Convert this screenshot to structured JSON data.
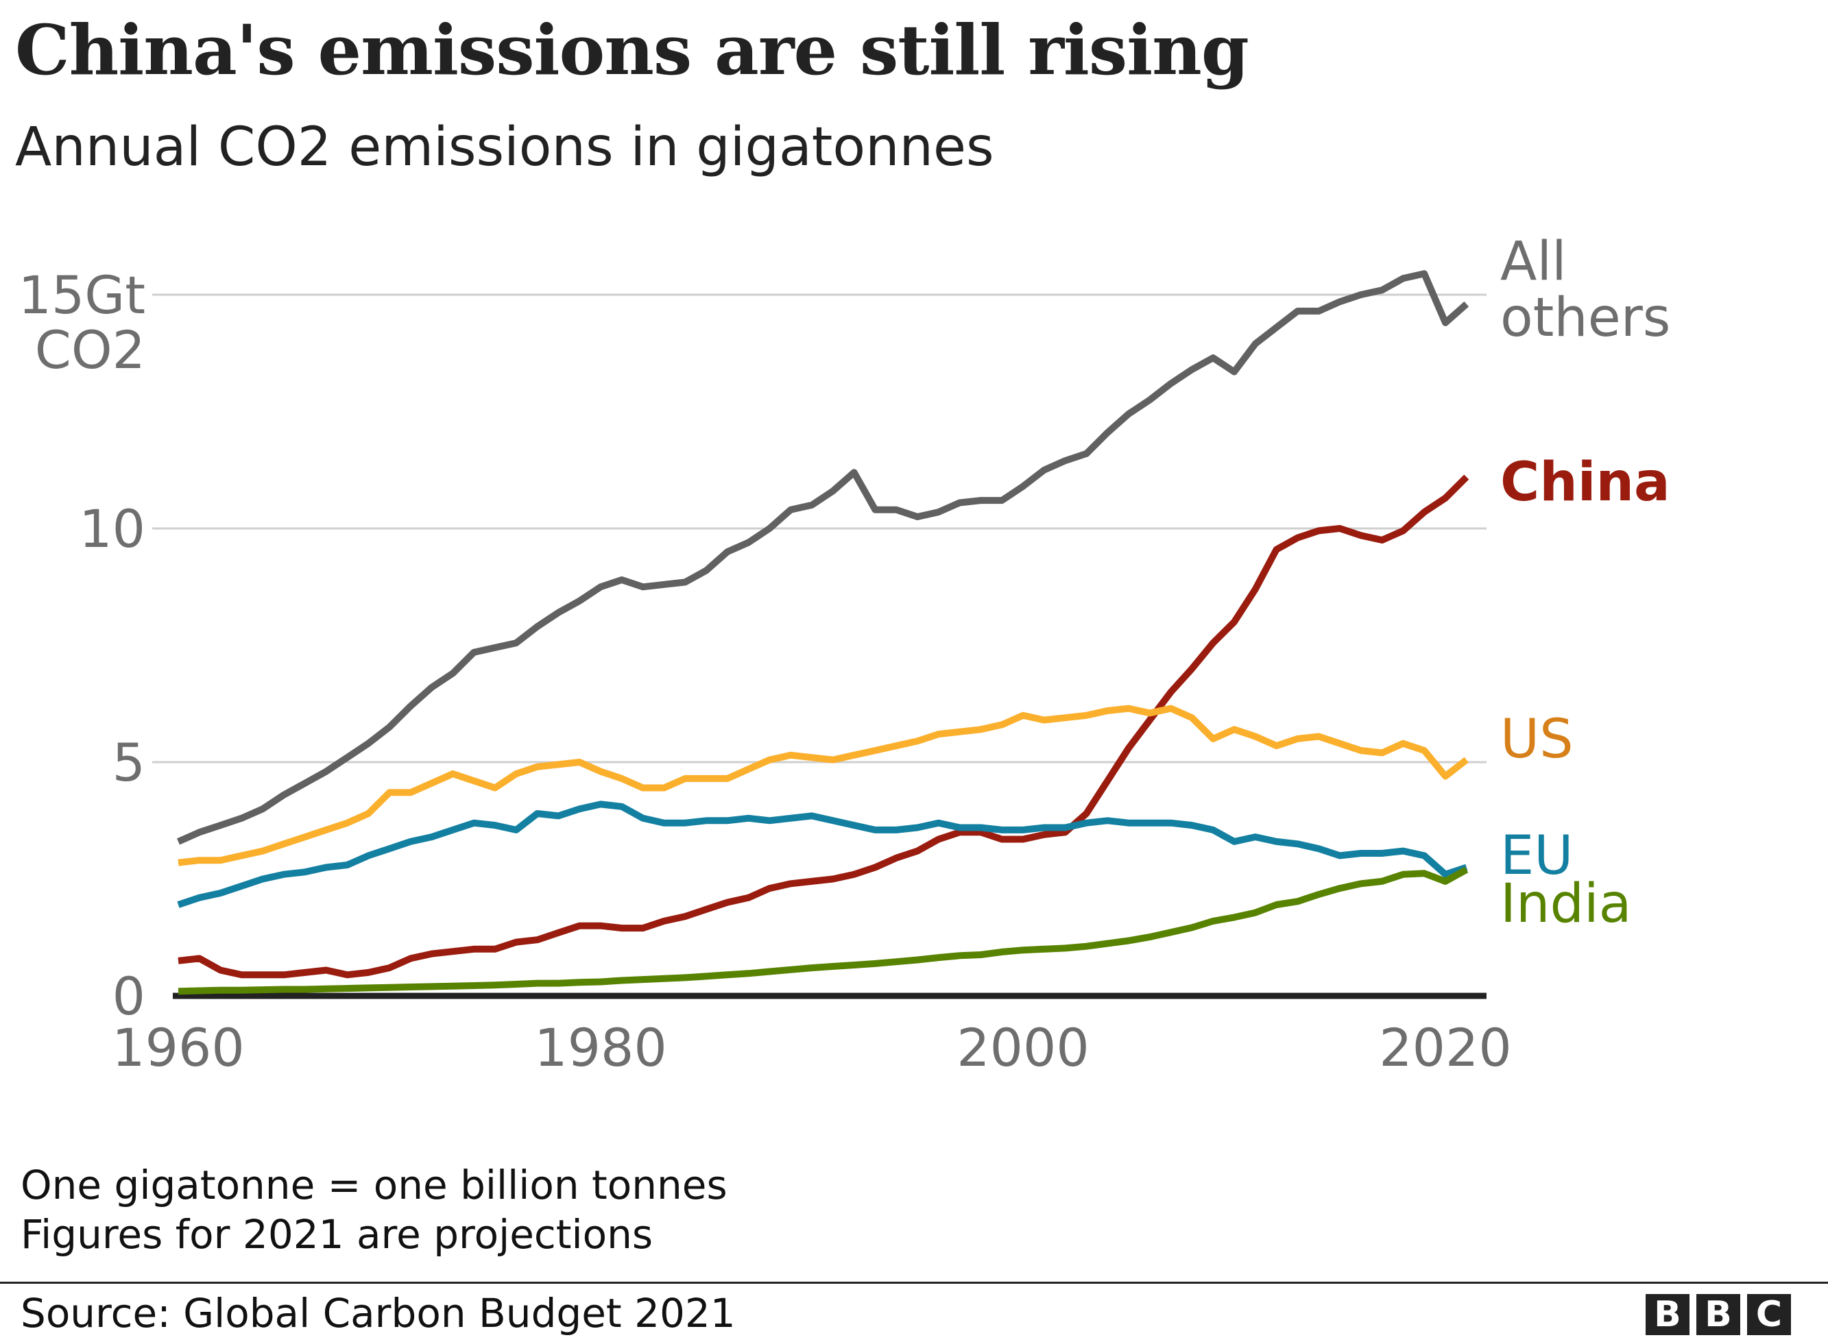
{
  "title": "China's emissions are still rising",
  "subtitle": "Annual CO2 emissions in gigatonnes",
  "notes": [
    "One gigatonne = one billion tonnes",
    "Figures for 2021 are projections"
  ],
  "source": "Source: Global Carbon Budget 2021",
  "logo": [
    "B",
    "B",
    "C"
  ],
  "chart_data": {
    "type": "line",
    "title": "China's emissions are still rising",
    "subtitle": "Annual CO2 emissions in gigatonnes",
    "ylabel_top": [
      "15Gt",
      "CO2"
    ],
    "xlim": [
      1960,
      2021
    ],
    "ylim": [
      0,
      15
    ],
    "x_ticks": [
      1960,
      1980,
      2000,
      2020
    ],
    "x_tick_labels": [
      "1960",
      "1980",
      "2000",
      "2020"
    ],
    "y_ticks": [
      0,
      5,
      10,
      15
    ],
    "y_tick_labels": [
      "0",
      "5",
      "10",
      ""
    ],
    "grid": "horizontal",
    "legend": "inline labels at line ends (right)",
    "x_start": 1960,
    "series": [
      {
        "name": "All others",
        "label_lines": [
          "All",
          "others"
        ],
        "color": "#616161",
        "label_color": "#6e6e6e",
        "values": [
          3.3,
          3.5,
          3.65,
          3.8,
          4.0,
          4.3,
          4.55,
          4.8,
          5.1,
          5.4,
          5.75,
          6.2,
          6.6,
          6.9,
          7.35,
          7.45,
          7.55,
          7.9,
          8.2,
          8.45,
          8.75,
          8.9,
          8.75,
          8.8,
          8.85,
          9.1,
          9.5,
          9.7,
          10.0,
          10.4,
          10.5,
          10.8,
          11.2,
          10.4,
          10.4,
          10.25,
          10.35,
          10.55,
          10.6,
          10.6,
          10.9,
          11.25,
          11.45,
          11.6,
          12.05,
          12.45,
          12.75,
          13.1,
          13.4,
          13.65,
          13.35,
          13.95,
          14.3,
          14.65,
          14.65,
          14.85,
          15.0,
          15.1,
          15.35,
          15.45,
          14.4,
          14.8
        ]
      },
      {
        "name": "China",
        "label_lines": [
          "China"
        ],
        "color": "#9a1c0f",
        "label_color": "#9a1c0f",
        "values": [
          0.75,
          0.8,
          0.55,
          0.45,
          0.45,
          0.45,
          0.5,
          0.55,
          0.45,
          0.5,
          0.6,
          0.8,
          0.9,
          0.95,
          1.0,
          1.0,
          1.15,
          1.2,
          1.35,
          1.5,
          1.5,
          1.45,
          1.45,
          1.6,
          1.7,
          1.85,
          2.0,
          2.1,
          2.3,
          2.4,
          2.45,
          2.5,
          2.6,
          2.75,
          2.95,
          3.1,
          3.35,
          3.5,
          3.5,
          3.35,
          3.35,
          3.45,
          3.5,
          3.9,
          4.6,
          5.3,
          5.9,
          6.5,
          7.0,
          7.55,
          8.0,
          8.7,
          9.55,
          9.8,
          9.95,
          10.0,
          9.85,
          9.75,
          9.95,
          10.35,
          10.65,
          11.1
        ]
      },
      {
        "name": "US",
        "label_lines": [
          "US"
        ],
        "color": "#fbb02d",
        "label_color": "#d7801a",
        "values": [
          2.85,
          2.9,
          2.9,
          3.0,
          3.1,
          3.25,
          3.4,
          3.55,
          3.7,
          3.9,
          4.35,
          4.35,
          4.55,
          4.75,
          4.6,
          4.45,
          4.75,
          4.9,
          4.95,
          5.0,
          4.8,
          4.65,
          4.45,
          4.45,
          4.65,
          4.65,
          4.65,
          4.85,
          5.05,
          5.15,
          5.1,
          5.05,
          5.15,
          5.25,
          5.35,
          5.45,
          5.6,
          5.65,
          5.7,
          5.8,
          6.0,
          5.9,
          5.95,
          6.0,
          6.1,
          6.15,
          6.05,
          6.15,
          5.95,
          5.5,
          5.7,
          5.55,
          5.35,
          5.5,
          5.55,
          5.4,
          5.25,
          5.2,
          5.4,
          5.25,
          4.7,
          5.05
        ]
      },
      {
        "name": "EU",
        "label_lines": [
          "EU"
        ],
        "color": "#1380a1",
        "label_color": "#1380a1",
        "values": [
          1.95,
          2.1,
          2.2,
          2.35,
          2.5,
          2.6,
          2.65,
          2.75,
          2.8,
          3.0,
          3.15,
          3.3,
          3.4,
          3.55,
          3.7,
          3.65,
          3.55,
          3.9,
          3.85,
          4.0,
          4.1,
          4.05,
          3.8,
          3.7,
          3.7,
          3.75,
          3.75,
          3.8,
          3.75,
          3.8,
          3.85,
          3.75,
          3.65,
          3.55,
          3.55,
          3.6,
          3.7,
          3.6,
          3.6,
          3.55,
          3.55,
          3.6,
          3.6,
          3.7,
          3.75,
          3.7,
          3.7,
          3.7,
          3.65,
          3.55,
          3.3,
          3.4,
          3.3,
          3.25,
          3.15,
          3.0,
          3.05,
          3.05,
          3.1,
          3.0,
          2.6,
          2.75
        ]
      },
      {
        "name": "India",
        "label_lines": [
          "India"
        ],
        "color": "#588300",
        "label_color": "#588300",
        "values": [
          0.1,
          0.11,
          0.12,
          0.12,
          0.13,
          0.14,
          0.14,
          0.15,
          0.16,
          0.17,
          0.18,
          0.19,
          0.2,
          0.21,
          0.22,
          0.23,
          0.25,
          0.27,
          0.27,
          0.29,
          0.3,
          0.33,
          0.35,
          0.37,
          0.39,
          0.42,
          0.45,
          0.48,
          0.52,
          0.56,
          0.6,
          0.63,
          0.66,
          0.69,
          0.73,
          0.77,
          0.82,
          0.86,
          0.88,
          0.94,
          0.98,
          1.0,
          1.02,
          1.06,
          1.12,
          1.18,
          1.26,
          1.36,
          1.46,
          1.6,
          1.68,
          1.78,
          1.95,
          2.02,
          2.17,
          2.3,
          2.4,
          2.45,
          2.6,
          2.62,
          2.45,
          2.7
        ]
      }
    ]
  }
}
